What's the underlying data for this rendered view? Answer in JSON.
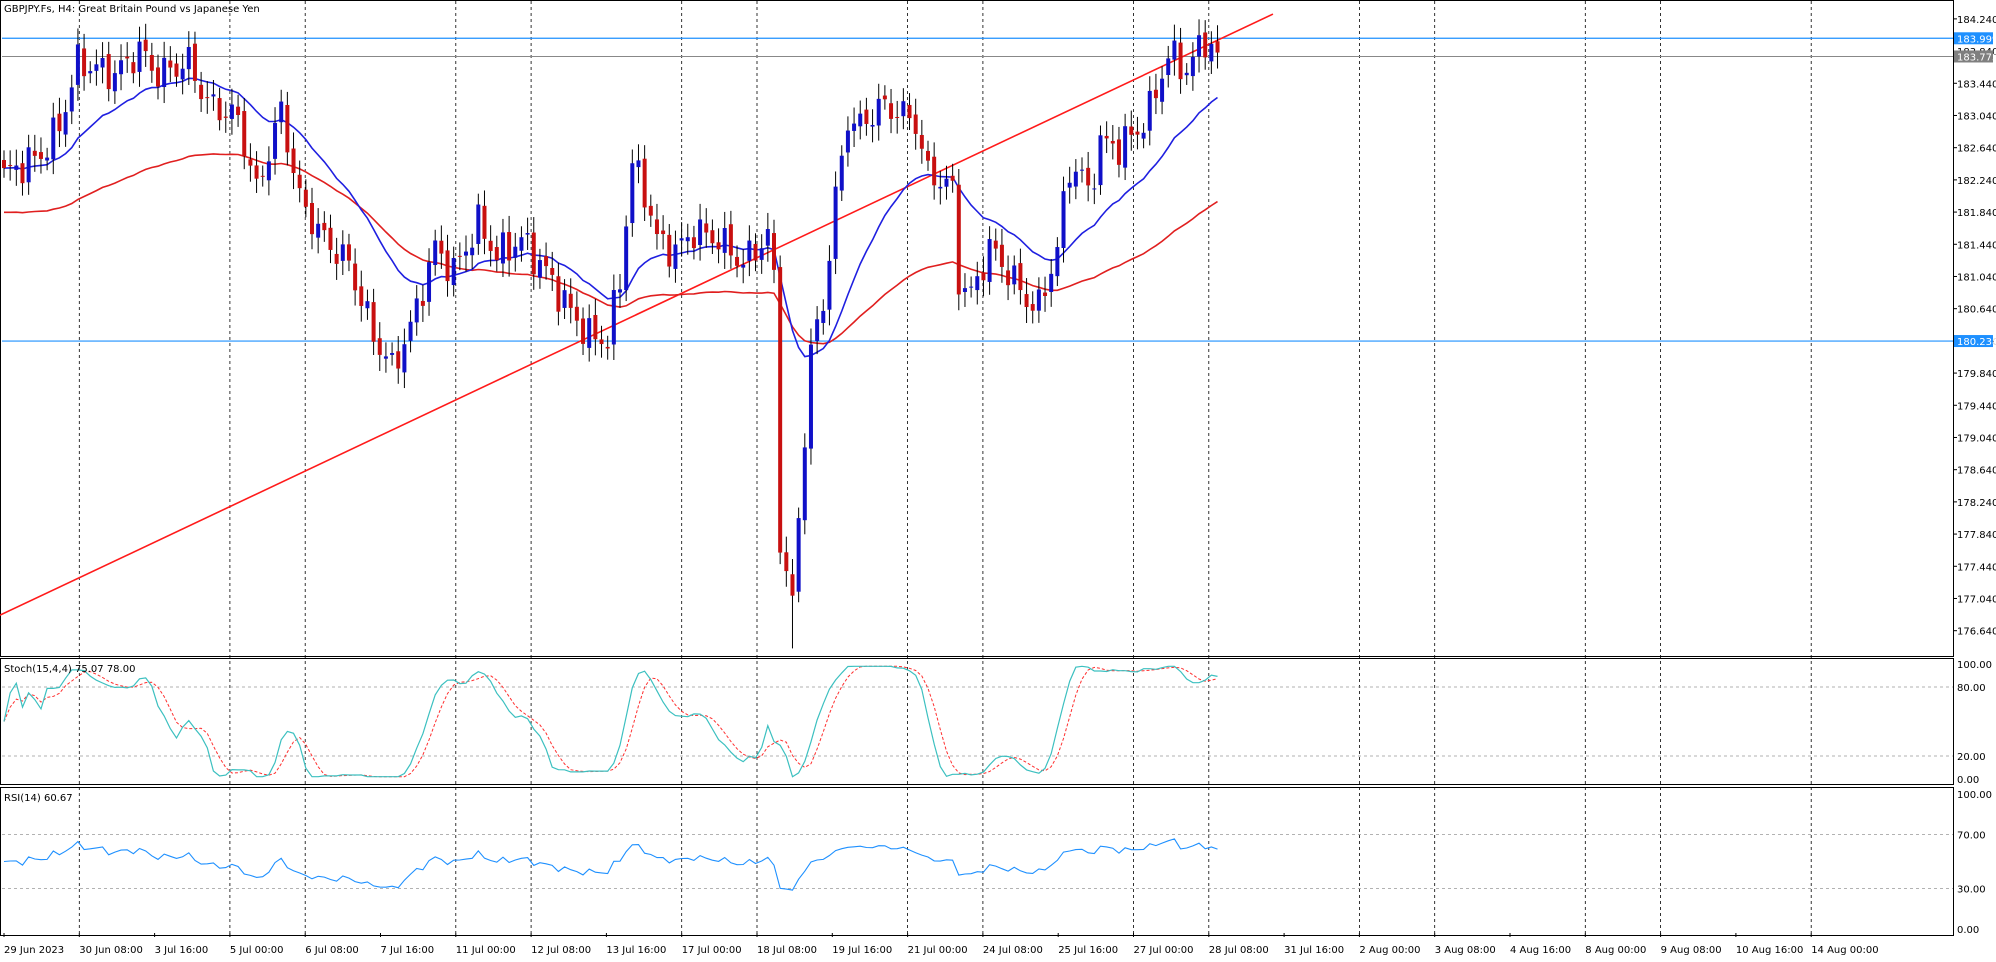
{
  "window": {
    "title": "GBPJPY.Fs, H4:  Great Britain Pound vs Japanese Yen"
  },
  "colors": {
    "background": "#ffffff",
    "bull_candle": "#1010c8",
    "bear_candle": "#c81010",
    "wick": "#000000",
    "ma_fast": "#1f1fe0",
    "ma_slow": "#e01f1f",
    "trendline": "#ff1a1a",
    "hline": "#1e90ff",
    "stoch_main": "#3cc0c0",
    "stoch_signal": "#ff3030",
    "rsi_line": "#1e90ff",
    "price_label_bg": "#1e90ff",
    "axis_text": "#000000",
    "grid": "#000000"
  },
  "main_panel": {
    "price_axis_ticks": [
      "184.240",
      "183.840",
      "183.440",
      "183.040",
      "182.640",
      "182.240",
      "181.840",
      "181.440",
      "181.040",
      "180.640",
      "180.240",
      "179.840",
      "179.440",
      "179.040",
      "178.640",
      "178.240",
      "177.840",
      "177.440",
      "177.040",
      "176.640"
    ],
    "ylim": [
      176.4,
      184.4
    ],
    "labels": [
      {
        "text": "183.999",
        "price": 183.999,
        "style": "blue"
      },
      {
        "text": "183.840",
        "price": 183.85,
        "style": "plain"
      },
      {
        "text": "183.773",
        "price": 183.773,
        "style": "gray"
      },
      {
        "text": "180.238",
        "price": 180.238,
        "style": "blue"
      }
    ],
    "horizontal_lines": [
      183.999,
      180.238
    ],
    "grey_line": 183.773
  },
  "stoch_panel": {
    "label": "Stoch(15,4,4) 75.07 78.00",
    "ticks": [
      "100.00",
      "80.00",
      "20.00",
      "0.00"
    ],
    "levels": [
      80,
      20
    ]
  },
  "rsi_panel": {
    "label": "RSI(14) 60.67",
    "ticks": [
      "100.00",
      "70.00",
      "30.00",
      "0.00"
    ],
    "levels": [
      70,
      30
    ]
  },
  "time_axis": {
    "labels": [
      "29 Jun 2023",
      "30 Jun 08:00",
      "3 Jul 16:00",
      "5 Jul 00:00",
      "6 Jul 08:00",
      "7 Jul 16:00",
      "11 Jul 00:00",
      "12 Jul 08:00",
      "13 Jul 16:00",
      "17 Jul 00:00",
      "18 Jul 08:00",
      "19 Jul 16:00",
      "21 Jul 00:00",
      "24 Jul 08:00",
      "25 Jul 16:00",
      "27 Jul 00:00",
      "28 Jul 08:00",
      "31 Jul 16:00",
      "2 Aug 00:00",
      "3 Aug 08:00",
      "4 Aug 16:00",
      "8 Aug 00:00",
      "9 Aug 08:00",
      "10 Aug 16:00",
      "14 Aug 00:00"
    ]
  },
  "chart_data": {
    "type": "candlestick",
    "symbol": "GBPJPY.Fs",
    "timeframe": "H4",
    "description": "Great Britain Pound vs Japanese Yen",
    "ylim": [
      176.4,
      184.4
    ],
    "anchors": [
      {
        "bar": 0,
        "price": 182.3
      },
      {
        "bar": 6,
        "price": 182.55
      },
      {
        "bar": 9,
        "price": 182.9
      },
      {
        "bar": 12,
        "price": 183.7
      },
      {
        "bar": 18,
        "price": 183.55
      },
      {
        "bar": 22,
        "price": 183.85
      },
      {
        "bar": 25,
        "price": 183.55
      },
      {
        "bar": 30,
        "price": 183.7
      },
      {
        "bar": 33,
        "price": 183.2
      },
      {
        "bar": 38,
        "price": 183.0
      },
      {
        "bar": 41,
        "price": 182.1
      },
      {
        "bar": 45,
        "price": 183.1
      },
      {
        "bar": 48,
        "price": 182.0
      },
      {
        "bar": 52,
        "price": 181.5
      },
      {
        "bar": 56,
        "price": 181.2
      },
      {
        "bar": 60,
        "price": 180.3
      },
      {
        "bar": 63,
        "price": 179.9
      },
      {
        "bar": 66,
        "price": 180.4
      },
      {
        "bar": 70,
        "price": 181.4
      },
      {
        "bar": 73,
        "price": 181.1
      },
      {
        "bar": 77,
        "price": 181.7
      },
      {
        "bar": 80,
        "price": 181.3
      },
      {
        "bar": 84,
        "price": 181.5
      },
      {
        "bar": 88,
        "price": 181.1
      },
      {
        "bar": 92,
        "price": 180.6
      },
      {
        "bar": 95,
        "price": 180.3
      },
      {
        "bar": 98,
        "price": 180.25
      },
      {
        "bar": 100,
        "price": 181.0
      },
      {
        "bar": 102,
        "price": 182.45
      },
      {
        "bar": 104,
        "price": 182.1
      },
      {
        "bar": 106,
        "price": 181.5
      },
      {
        "bar": 109,
        "price": 181.35
      },
      {
        "bar": 112,
        "price": 181.6
      },
      {
        "bar": 116,
        "price": 181.5
      },
      {
        "bar": 120,
        "price": 181.2
      },
      {
        "bar": 124,
        "price": 181.55
      },
      {
        "bar": 125,
        "price": 181.0
      },
      {
        "bar": 126,
        "price": 177.8
      },
      {
        "bar": 128,
        "price": 176.95
      },
      {
        "bar": 130,
        "price": 179.1
      },
      {
        "bar": 131,
        "price": 180.1
      },
      {
        "bar": 133,
        "price": 180.7
      },
      {
        "bar": 135,
        "price": 182.0
      },
      {
        "bar": 137,
        "price": 183.0
      },
      {
        "bar": 139,
        "price": 182.9
      },
      {
        "bar": 142,
        "price": 183.15
      },
      {
        "bar": 145,
        "price": 183.1
      },
      {
        "bar": 148,
        "price": 182.95
      },
      {
        "bar": 150,
        "price": 182.3
      },
      {
        "bar": 152,
        "price": 182.25
      },
      {
        "bar": 154,
        "price": 182.1
      },
      {
        "bar": 155,
        "price": 181.0
      },
      {
        "bar": 157,
        "price": 180.8
      },
      {
        "bar": 160,
        "price": 181.4
      },
      {
        "bar": 163,
        "price": 181.1
      },
      {
        "bar": 166,
        "price": 180.75
      },
      {
        "bar": 168,
        "price": 180.65
      },
      {
        "bar": 171,
        "price": 181.4
      },
      {
        "bar": 173,
        "price": 182.4
      },
      {
        "bar": 175,
        "price": 182.3
      },
      {
        "bar": 176,
        "price": 182.05
      },
      {
        "bar": 178,
        "price": 182.7
      },
      {
        "bar": 181,
        "price": 182.65
      },
      {
        "bar": 184,
        "price": 182.85
      },
      {
        "bar": 186,
        "price": 183.1
      },
      {
        "bar": 189,
        "price": 183.8
      },
      {
        "bar": 192,
        "price": 183.6
      },
      {
        "bar": 195,
        "price": 184.0
      },
      {
        "bar": 197,
        "price": 183.75
      }
    ],
    "ma_fast_period_hint": 21,
    "ma_slow_period_hint": 55,
    "trendline": {
      "from": {
        "bar": -1,
        "price": 176.82
      },
      "to": {
        "bar": 206,
        "price": 184.3
      }
    },
    "stochastic": {
      "k": 75.07,
      "d": 78.0,
      "levels": [
        80,
        20
      ]
    },
    "rsi": {
      "value": 60.67,
      "levels": [
        70,
        30
      ]
    }
  }
}
